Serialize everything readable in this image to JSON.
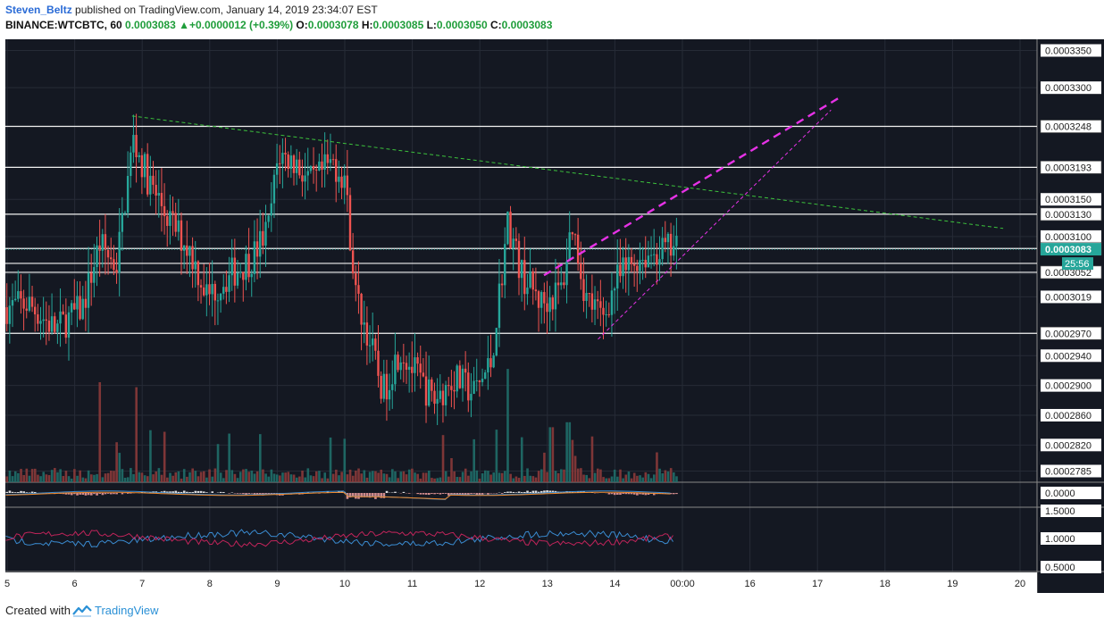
{
  "header": {
    "author": "Steven_Beltz",
    "published_text": " published on TradingView.com, January 14, 2019 23:34:07 EST",
    "symbol_label": "BINANCE:WTCBTC, 60",
    "last_price": "0.0003083",
    "change": "+0.0000012 (+0.39%)",
    "open_label": "O:",
    "open": "0.0003078",
    "high_label": "H:",
    "high": "0.0003085",
    "low_label": "L:",
    "low": "0.0003050",
    "close_label": "C:",
    "close": "0.0003083"
  },
  "footer": {
    "created_with": "Created with",
    "brand": "TradingView"
  },
  "colors": {
    "background": "#141822",
    "grid": "#262b36",
    "up": "#26a69a",
    "down": "#ef5350",
    "price_line": "#26a69a",
    "green_trend": "#3cc23c",
    "magenta": "#e632e6",
    "rsi_blue": "#3a8bd0",
    "rsi_red": "#c0245a"
  },
  "chart_data": {
    "type": "candlestick",
    "symbol": "WTCBTC",
    "exchange": "BINANCE",
    "interval": "60",
    "x_ticks": [
      "5",
      "6",
      "7",
      "8",
      "9",
      "10",
      "11",
      "12",
      "13",
      "14",
      "00:00",
      "16",
      "17",
      "18",
      "19",
      "20"
    ],
    "y_ticks": [
      "0.0003350",
      "0.0003300",
      "0.0003150",
      "0.0003100",
      "0.0003019",
      "0.0002940",
      "0.0002900",
      "0.0002860",
      "0.0002820",
      "0.0002785"
    ],
    "ylim": [
      0.000277,
      0.0003365
    ],
    "horizontal_levels": [
      {
        "value": 0.0003248,
        "label": "0.0003248"
      },
      {
        "value": 0.0003193,
        "label": "0.0003193"
      },
      {
        "value": 0.000313,
        "label": "0.0003130"
      },
      {
        "value": 0.0003084,
        "label": "0.0003084"
      },
      {
        "value": 0.0003064,
        "label": ""
      },
      {
        "value": 0.0003052,
        "label": "0.0003052"
      },
      {
        "value": 0.000297,
        "label": "0.0002970"
      }
    ],
    "current_price": {
      "value": 0.0003083,
      "label": "0.0003083",
      "countdown": "25:56"
    },
    "trend_lines": [
      {
        "name": "descending-resistance",
        "from": {
          "x": 6.85,
          "y": 0.0003262
        },
        "to": {
          "x": 19.75,
          "y": 0.0003111
        },
        "style": "dashed",
        "color": "green"
      },
      {
        "name": "rising-resistance",
        "from": {
          "x": 12.95,
          "y": 0.0003048
        },
        "to": {
          "x": 17.35,
          "y": 0.0003288
        },
        "style": "dashed-thick",
        "color": "magenta"
      },
      {
        "name": "rising-support",
        "from": {
          "x": 13.75,
          "y": 0.0002962
        },
        "to": {
          "x": 17.2,
          "y": 0.000327
        },
        "style": "dashed",
        "color": "magenta"
      }
    ],
    "price_path": [
      [
        4.0,
        0.000299
      ],
      [
        5.3,
        0.000301
      ],
      [
        5.7,
        0.0002975
      ],
      [
        6.1,
        0.0003005
      ],
      [
        6.35,
        0.000309
      ],
      [
        6.6,
        0.000306
      ],
      [
        6.85,
        0.000323
      ],
      [
        7.1,
        0.000317
      ],
      [
        7.4,
        0.000312
      ],
      [
        7.7,
        0.000308
      ],
      [
        7.95,
        0.000302
      ],
      [
        8.3,
        0.000305
      ],
      [
        8.6,
        0.000307
      ],
      [
        8.85,
        0.000311
      ],
      [
        9.0,
        0.000321
      ],
      [
        9.25,
        0.00032
      ],
      [
        9.5,
        0.000317
      ],
      [
        9.8,
        0.00032
      ],
      [
        9.98,
        0.000318
      ],
      [
        10.15,
        0.000302
      ],
      [
        10.35,
        0.000296
      ],
      [
        10.55,
        0.000289
      ],
      [
        10.8,
        0.000295
      ],
      [
        11.0,
        0.000292
      ],
      [
        11.3,
        0.000288
      ],
      [
        11.6,
        0.000291
      ],
      [
        11.9,
        0.000289
      ],
      [
        12.15,
        0.000293
      ],
      [
        12.4,
        0.000312
      ],
      [
        12.6,
        0.000305
      ],
      [
        12.9,
        0.000301
      ],
      [
        13.2,
        0.000303
      ],
      [
        13.35,
        0.000312
      ],
      [
        13.55,
        0.000302
      ],
      [
        13.8,
        0.000299
      ],
      [
        14.0,
        0.000304
      ],
      [
        14.3,
        0.000307
      ],
      [
        14.6,
        0.000308
      ],
      [
        14.85,
        0.0003083
      ]
    ],
    "volume_spikes": [
      [
        6.35,
        1.0
      ],
      [
        6.9,
        0.95
      ],
      [
        12.4,
        0.9
      ],
      [
        13.3,
        0.6
      ],
      [
        13.05,
        0.55
      ],
      [
        12.6,
        0.45
      ],
      [
        6.6,
        0.4
      ]
    ],
    "macd_panel": {
      "y_ticks": [
        "0.0000"
      ]
    },
    "rsi_panel": {
      "y_ticks": [
        "1.5000",
        "1.0000",
        "0.5000"
      ]
    }
  }
}
